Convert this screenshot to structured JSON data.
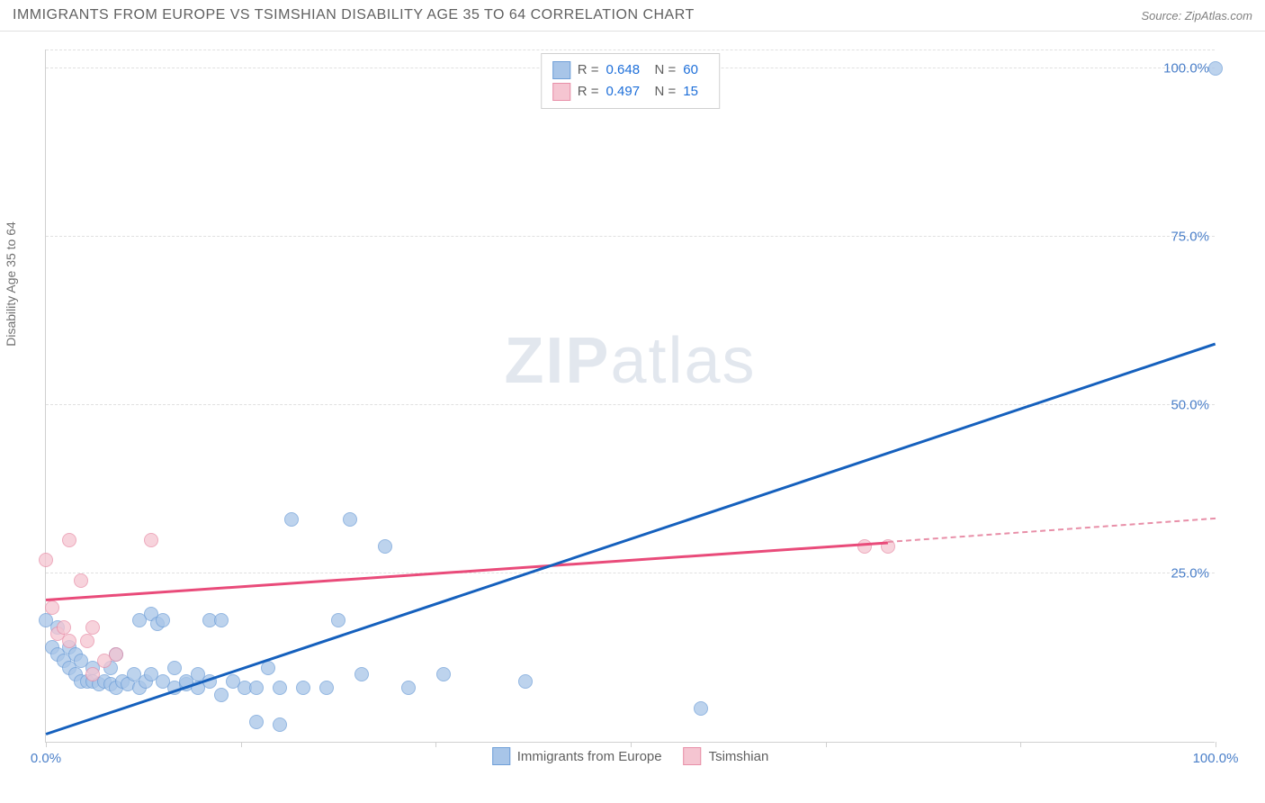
{
  "header": {
    "title": "IMMIGRANTS FROM EUROPE VS TSIMSHIAN DISABILITY AGE 35 TO 64 CORRELATION CHART",
    "source_prefix": "Source: ",
    "source_name": "ZipAtlas.com"
  },
  "axes": {
    "y_label": "Disability Age 35 to 64",
    "x_min": 0,
    "x_max": 100,
    "y_min": 0,
    "y_max": 103,
    "y_ticks": [
      25,
      50,
      75,
      100
    ],
    "y_tick_labels": [
      "25.0%",
      "50.0%",
      "75.0%",
      "100.0%"
    ],
    "x_ticks": [
      0,
      16.67,
      33.33,
      50,
      66.67,
      83.33,
      100
    ],
    "x_tick_labels": {
      "0": "0.0%",
      "100": "100.0%"
    },
    "gridline_color": "#e0e0e0",
    "axis_color": "#d0d0d0",
    "tick_label_color": "#4a7fc9"
  },
  "watermark": {
    "bold": "ZIP",
    "rest": "atlas"
  },
  "series": {
    "europe": {
      "label": "Immigrants from Europe",
      "fill": "#a8c5e8",
      "stroke": "#6f9fd8",
      "marker_radius": 8,
      "points": [
        [
          0,
          18
        ],
        [
          0.5,
          14
        ],
        [
          1,
          13
        ],
        [
          1,
          17
        ],
        [
          1.5,
          12
        ],
        [
          2,
          11
        ],
        [
          2,
          14
        ],
        [
          2.5,
          10
        ],
        [
          2.5,
          13
        ],
        [
          3,
          9
        ],
        [
          3,
          12
        ],
        [
          3.5,
          9
        ],
        [
          4,
          9
        ],
        [
          4,
          11
        ],
        [
          4.5,
          8.5
        ],
        [
          5,
          9
        ],
        [
          5.5,
          8.5
        ],
        [
          5.5,
          11
        ],
        [
          6,
          8
        ],
        [
          6,
          13
        ],
        [
          6.5,
          9
        ],
        [
          7,
          8.5
        ],
        [
          7.5,
          10
        ],
        [
          8,
          8
        ],
        [
          8,
          18
        ],
        [
          8.5,
          9
        ],
        [
          9,
          10
        ],
        [
          9,
          19
        ],
        [
          9.5,
          17.5
        ],
        [
          10,
          9
        ],
        [
          10,
          18
        ],
        [
          11,
          8
        ],
        [
          11,
          11
        ],
        [
          12,
          8.5
        ],
        [
          12,
          9
        ],
        [
          13,
          8
        ],
        [
          13,
          10
        ],
        [
          14,
          9
        ],
        [
          14,
          18
        ],
        [
          15,
          7
        ],
        [
          15,
          18
        ],
        [
          16,
          9
        ],
        [
          17,
          8
        ],
        [
          18,
          3
        ],
        [
          18,
          8
        ],
        [
          19,
          11
        ],
        [
          20,
          8
        ],
        [
          20,
          2.5
        ],
        [
          21,
          33
        ],
        [
          22,
          8
        ],
        [
          24,
          8
        ],
        [
          25,
          18
        ],
        [
          26,
          33
        ],
        [
          27,
          10
        ],
        [
          29,
          29
        ],
        [
          31,
          8
        ],
        [
          34,
          10
        ],
        [
          41,
          9
        ],
        [
          56,
          5
        ],
        [
          100,
          100
        ]
      ],
      "trend": {
        "x1": 0,
        "y1": 1,
        "x2": 100,
        "y2": 59,
        "color": "#1560bd",
        "width": 2.5
      }
    },
    "tsimshian": {
      "label": "Tsimshian",
      "fill": "#f5c5d1",
      "stroke": "#e88fa8",
      "marker_radius": 8,
      "points": [
        [
          0,
          27
        ],
        [
          0.5,
          20
        ],
        [
          1,
          16
        ],
        [
          1.5,
          17
        ],
        [
          2,
          30
        ],
        [
          2,
          15
        ],
        [
          3,
          24
        ],
        [
          3.5,
          15
        ],
        [
          4,
          17
        ],
        [
          4,
          10
        ],
        [
          5,
          12
        ],
        [
          6,
          13
        ],
        [
          9,
          30
        ],
        [
          70,
          29
        ],
        [
          72,
          29
        ]
      ],
      "trend_solid": {
        "x1": 0,
        "y1": 21,
        "x2": 72,
        "y2": 29.5,
        "color": "#e94b7a",
        "width": 2.5
      },
      "trend_dashed": {
        "x1": 72,
        "y1": 29.5,
        "x2": 100,
        "y2": 33,
        "color": "#e88fa8"
      }
    }
  },
  "stat_box": {
    "rows": [
      {
        "swatch_fill": "#a8c5e8",
        "swatch_stroke": "#6f9fd8",
        "r_label": "R =",
        "r": "0.648",
        "n_label": "N =",
        "n": "60"
      },
      {
        "swatch_fill": "#f5c5d1",
        "swatch_stroke": "#e88fa8",
        "r_label": "R =",
        "r": "0.497",
        "n_label": "N =",
        "n": "15"
      }
    ]
  },
  "legend": [
    {
      "swatch_fill": "#a8c5e8",
      "swatch_stroke": "#6f9fd8",
      "label": "Immigrants from Europe"
    },
    {
      "swatch_fill": "#f5c5d1",
      "swatch_stroke": "#e88fa8",
      "label": "Tsimshian"
    }
  ]
}
